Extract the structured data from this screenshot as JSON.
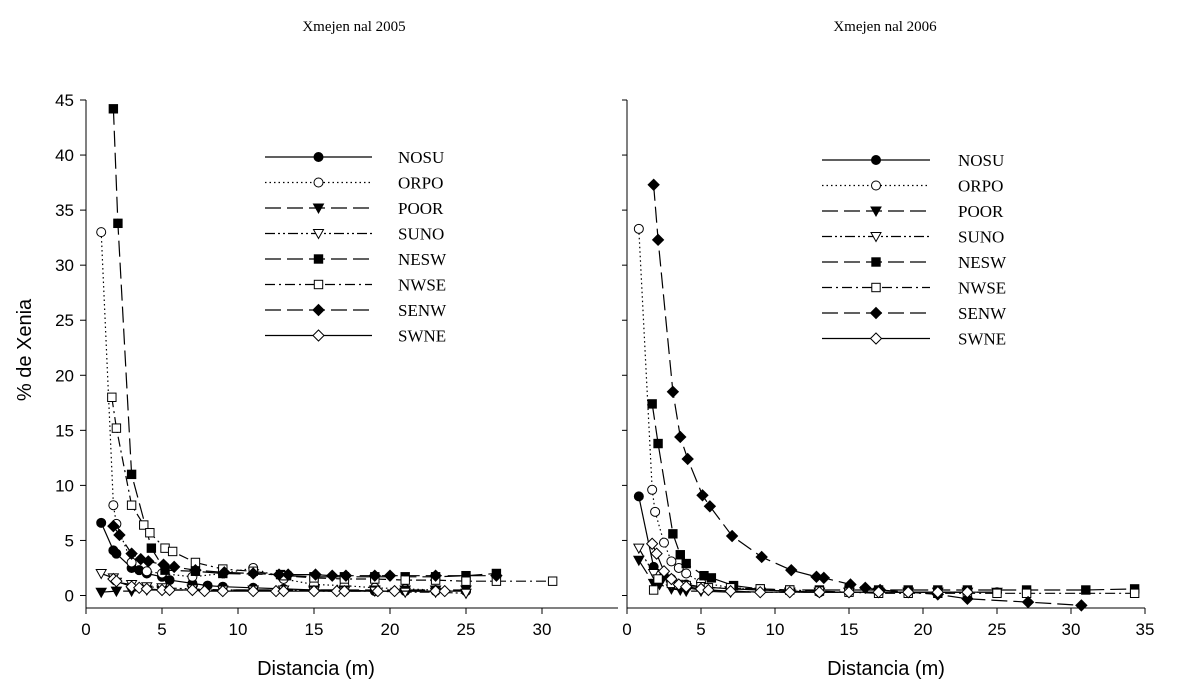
{
  "chart_data": [
    {
      "type": "line",
      "title": "Xmejen nal 2005",
      "xlabel": "Distancia (m)",
      "ylabel": "% de Xenia",
      "xlim": [
        0,
        35
      ],
      "ylim": [
        0,
        45
      ],
      "xticks": [
        "0",
        "5",
        "10",
        "15",
        "20",
        "25",
        "30"
      ],
      "yticks": [
        "0",
        "5",
        "10",
        "15",
        "20",
        "25",
        "30",
        "35",
        "40",
        "45"
      ],
      "legend_position": "upper-center",
      "series": [
        {
          "name": "NOSU",
          "marker": "circle-filled",
          "dash": "solid",
          "x": [
            1,
            1.8,
            2,
            3,
            3.5,
            4,
            5,
            5.5,
            7,
            8,
            9,
            11,
            13,
            15,
            17,
            19,
            21,
            23,
            25
          ],
          "y": [
            6.6,
            4.1,
            3.8,
            2.5,
            2.3,
            2.0,
            1.7,
            1.4,
            1.1,
            0.9,
            0.8,
            0.7,
            0.6,
            0.5,
            0.5,
            0.4,
            0.4,
            0.4,
            0.4
          ]
        },
        {
          "name": "ORPO",
          "marker": "circle-open",
          "dash": "dotted",
          "x": [
            1,
            1.8,
            2,
            3,
            4,
            5,
            7,
            9,
            11,
            13,
            15,
            17,
            19,
            21,
            23,
            25
          ],
          "y": [
            33.0,
            8.2,
            6.5,
            3.0,
            2.2,
            2.0,
            1.7,
            2.0,
            2.5,
            1.5,
            1.0,
            0.9,
            0.7,
            0.6,
            0.5,
            0.4
          ]
        },
        {
          "name": "POOR",
          "marker": "triangle-filled",
          "dash": "long-dash",
          "x": [
            1,
            2,
            3,
            4,
            5,
            7,
            9,
            11,
            13,
            15,
            17,
            19,
            21,
            23,
            25
          ],
          "y": [
            0.3,
            0.4,
            0.4,
            0.5,
            0.5,
            0.5,
            0.5,
            0.5,
            0.5,
            0.5,
            0.5,
            0.5,
            0.5,
            0.5,
            0.5
          ]
        },
        {
          "name": "SUNO",
          "marker": "triangle-open",
          "dash": "dash-dot-dot",
          "x": [
            1,
            1.8,
            2,
            3,
            4,
            5,
            7,
            9,
            11,
            13,
            15,
            17,
            19,
            21,
            23,
            25
          ],
          "y": [
            2.0,
            1.6,
            1.2,
            1.0,
            0.8,
            0.7,
            0.6,
            0.5,
            0.5,
            0.5,
            0.4,
            0.4,
            0.4,
            0.3,
            0.3,
            0.2
          ]
        },
        {
          "name": "NESW",
          "marker": "square-filled",
          "dash": "long-dash",
          "x": [
            1.8,
            2.1,
            3,
            4.3,
            5.2,
            7.2,
            9,
            12.8,
            13.2,
            15,
            17,
            19,
            21,
            23,
            25,
            27
          ],
          "y": [
            44.2,
            33.8,
            11.0,
            4.3,
            2.3,
            2.2,
            2.0,
            1.9,
            1.8,
            1.7,
            1.7,
            1.7,
            1.7,
            1.7,
            1.8,
            2.0
          ]
        },
        {
          "name": "NWSE",
          "marker": "square-open",
          "dash": "dash-dot",
          "x": [
            1.7,
            2,
            3,
            3.8,
            4.2,
            5.2,
            5.7,
            7.2,
            9,
            11,
            13,
            15,
            17,
            19,
            21,
            23,
            25,
            27,
            30.7
          ],
          "y": [
            18.0,
            15.2,
            8.2,
            6.4,
            5.7,
            4.3,
            4.0,
            3.0,
            2.4,
            2.2,
            1.8,
            1.6,
            1.5,
            1.5,
            1.4,
            1.4,
            1.3,
            1.3,
            1.3
          ]
        },
        {
          "name": "SENW",
          "marker": "diamond-filled",
          "dash": "long-dash",
          "x": [
            1.8,
            2.2,
            3,
            3.6,
            4.1,
            5.1,
            5.8,
            7.2,
            9.1,
            11,
            12.7,
            13.3,
            15.1,
            16.2,
            17.1,
            19,
            20,
            23,
            27
          ],
          "y": [
            6.3,
            5.5,
            3.8,
            3.3,
            3.1,
            2.8,
            2.6,
            2.3,
            2.1,
            2.0,
            1.9,
            1.9,
            1.9,
            1.8,
            1.8,
            1.8,
            1.8,
            1.8,
            1.8
          ]
        },
        {
          "name": "SWNE",
          "marker": "diamond-open",
          "dash": "solid",
          "x": [
            1.8,
            2,
            3,
            3.5,
            4,
            5,
            5.5,
            7,
            7.8,
            9,
            11,
            12.5,
            13,
            15,
            16.5,
            17,
            19.2,
            20.3,
            23,
            23.6
          ],
          "y": [
            1.5,
            1.3,
            0.8,
            0.7,
            0.6,
            0.5,
            0.5,
            0.5,
            0.4,
            0.4,
            0.4,
            0.4,
            0.4,
            0.4,
            0.4,
            0.4,
            0.4,
            0.4,
            0.4,
            0.4
          ]
        }
      ]
    },
    {
      "type": "line",
      "title": "Xmejen nal 2006",
      "xlabel": "Distancia (m)",
      "ylabel": "",
      "xlim": [
        0,
        35
      ],
      "ylim": [
        0,
        45
      ],
      "xticks": [
        "0",
        "5",
        "10",
        "15",
        "20",
        "25",
        "30",
        "35"
      ],
      "yticks": [],
      "legend_position": "upper-center",
      "series": [
        {
          "name": "NOSU",
          "marker": "circle-filled",
          "dash": "solid",
          "x": [
            0.8,
            1.8,
            2.5,
            3,
            4,
            5,
            7,
            9,
            11,
            13,
            15,
            17,
            19,
            21,
            23,
            25
          ],
          "y": [
            9.0,
            2.6,
            1.8,
            1.5,
            1.0,
            0.8,
            0.6,
            0.5,
            0.4,
            0.3,
            0.3,
            0.3,
            0.3,
            0.3,
            0.3,
            0.3
          ]
        },
        {
          "name": "ORPO",
          "marker": "circle-open",
          "dash": "dotted",
          "x": [
            0.8,
            1.7,
            1.9,
            2.5,
            3,
            3.5,
            4,
            5,
            7,
            9,
            11,
            13,
            15,
            17,
            19,
            21,
            23
          ],
          "y": [
            33.3,
            9.6,
            7.6,
            4.8,
            3.1,
            2.5,
            2.0,
            1.2,
            0.7,
            0.5,
            0.4,
            0.3,
            0.3,
            0.3,
            0.3,
            0.3,
            0.3
          ]
        },
        {
          "name": "POOR",
          "marker": "triangle-filled",
          "dash": "long-dash",
          "x": [
            0.8,
            1.8,
            2.2,
            3,
            3.6,
            4,
            5,
            7,
            9,
            11,
            13,
            15,
            17,
            19,
            21,
            23,
            25
          ],
          "y": [
            3.2,
            1.1,
            1.0,
            0.6,
            0.5,
            0.4,
            0.4,
            0.3,
            0.3,
            0.3,
            0.3,
            0.3,
            0.3,
            0.3,
            0.3,
            0.3,
            0.3
          ]
        },
        {
          "name": "SUNO",
          "marker": "triangle-open",
          "dash": "dash-dot-dot",
          "x": [
            0.8,
            1.8,
            2,
            3,
            4,
            5,
            7,
            9,
            11,
            13,
            15,
            17,
            19,
            21,
            23
          ],
          "y": [
            4.3,
            2.0,
            1.5,
            1.0,
            0.7,
            0.5,
            0.4,
            0.3,
            0.3,
            0.3,
            0.3,
            0.3,
            0.3,
            0.3,
            0.3
          ]
        },
        {
          "name": "NESW",
          "marker": "square-filled",
          "dash": "long-dash",
          "x": [
            1.7,
            2.1,
            3.1,
            3.6,
            4,
            5.2,
            5.7,
            7.2,
            9,
            11,
            13,
            15,
            17,
            19,
            21,
            23,
            27,
            31,
            34.3
          ],
          "y": [
            17.4,
            13.8,
            5.6,
            3.7,
            2.9,
            1.8,
            1.6,
            0.9,
            0.6,
            0.5,
            0.5,
            0.5,
            0.5,
            0.5,
            0.5,
            0.5,
            0.5,
            0.5,
            0.6
          ]
        },
        {
          "name": "NWSE",
          "marker": "square-open",
          "dash": "dash-dot",
          "x": [
            1.8,
            2.1,
            3,
            3.5,
            4,
            5,
            5.5,
            7,
            9,
            11,
            13,
            15,
            17,
            19,
            21,
            23,
            25,
            27,
            34.3
          ],
          "y": [
            0.5,
            1.5,
            1.1,
            1.0,
            0.9,
            0.8,
            0.7,
            0.7,
            0.6,
            0.5,
            0.4,
            0.3,
            0.2,
            0.2,
            0.2,
            0.2,
            0.2,
            0.2,
            0.2
          ]
        },
        {
          "name": "SENW",
          "marker": "diamond-filled",
          "dash": "long-dash",
          "x": [
            1.8,
            2.1,
            3.1,
            3.6,
            4.1,
            5.1,
            5.6,
            7.1,
            9.1,
            11.1,
            12.8,
            13.3,
            15.1,
            16.1,
            17.1,
            19,
            21,
            23,
            27.1,
            30.7
          ],
          "y": [
            37.3,
            32.3,
            18.5,
            14.4,
            12.4,
            9.1,
            8.1,
            5.4,
            3.5,
            2.3,
            1.7,
            1.6,
            1.0,
            0.7,
            0.5,
            0.3,
            0.1,
            -0.3,
            -0.6,
            -0.9
          ]
        },
        {
          "name": "SWNE",
          "marker": "diamond-open",
          "dash": "solid",
          "x": [
            1.7,
            2,
            2.5,
            3,
            3.5,
            4,
            5,
            5.5,
            7,
            9,
            11,
            13,
            15,
            17,
            19,
            21,
            23
          ],
          "y": [
            4.7,
            3.8,
            2.2,
            1.5,
            1.0,
            0.8,
            0.6,
            0.5,
            0.4,
            0.3,
            0.3,
            0.3,
            0.3,
            0.3,
            0.3,
            0.3,
            0.3
          ]
        }
      ]
    }
  ]
}
